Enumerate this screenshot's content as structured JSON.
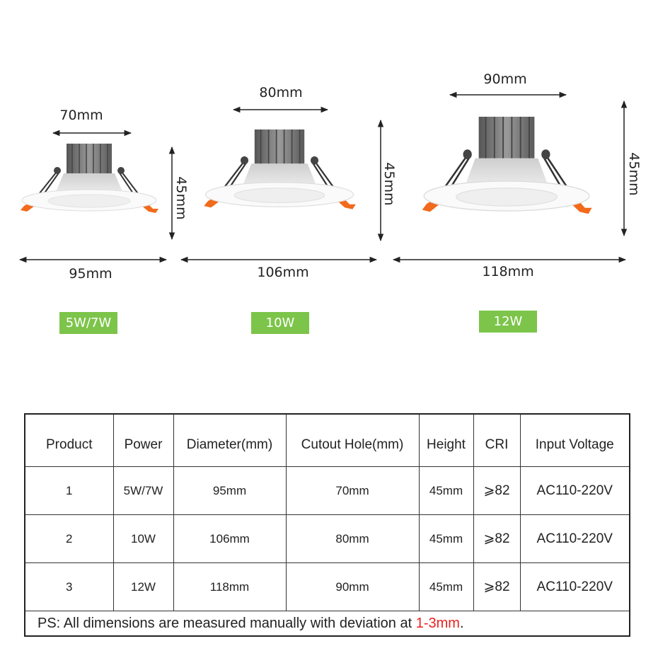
{
  "products": [
    {
      "cutout": "70mm",
      "height": "45mm",
      "diameter": "95mm",
      "power": "5W/7W"
    },
    {
      "cutout": "80mm",
      "height": "45mm",
      "diameter": "106mm",
      "power": "10W"
    },
    {
      "cutout": "90mm",
      "height": "45mm",
      "diameter": "118mm",
      "power": "12W"
    }
  ],
  "colors": {
    "badge": "#7cc44a",
    "accent_clip": "#f26a1b",
    "note_highlight": "#e8231f"
  },
  "table": {
    "headers": [
      "Product",
      "Power",
      "Diameter(mm)",
      "Cutout Hole(mm)",
      "Height",
      "CRI",
      "Input Voltage"
    ],
    "rows": [
      [
        "1",
        "5W/7W",
        "95mm",
        "70mm",
        "45mm",
        "⩾82",
        "AC110-220V"
      ],
      [
        "2",
        "10W",
        "106mm",
        "80mm",
        "45mm",
        "⩾82",
        "AC110-220V"
      ],
      [
        "3",
        "12W",
        "118mm",
        "90mm",
        "45mm",
        "⩾82",
        "AC110-220V"
      ]
    ],
    "note_prefix": "PS: All dimensions are measured manually with deviation at ",
    "note_highlight": "1-3mm",
    "note_suffix": "."
  }
}
